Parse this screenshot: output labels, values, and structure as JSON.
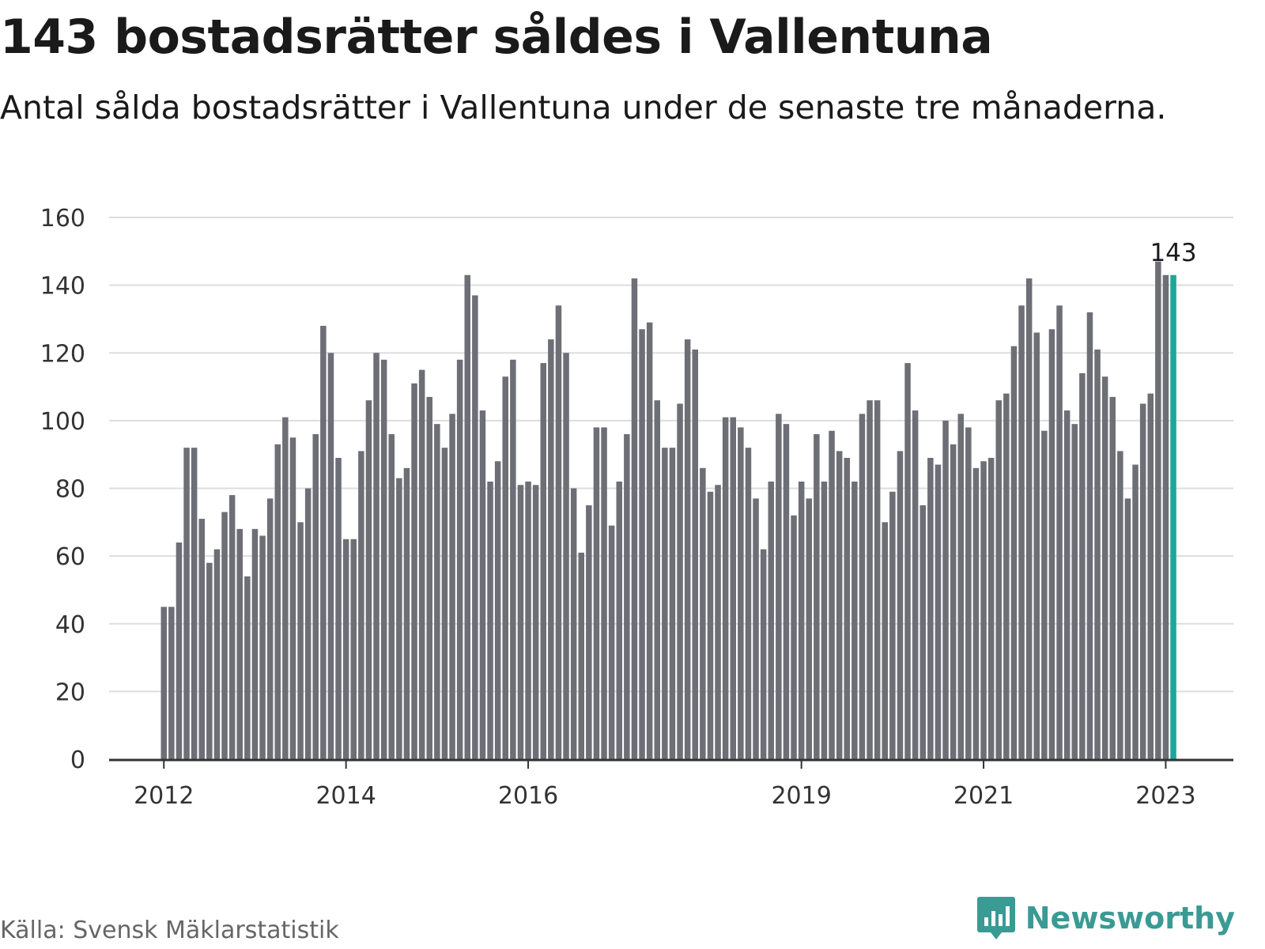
{
  "title": "143 bostadsrätter såldes i Vallentuna",
  "subtitle": "Antal sålda bostadsrätter i Vallentuna under de senaste tre månaderna.",
  "source": "Källa: Svensk Mäklarstatistik",
  "brand": "Newsworthy",
  "colors": {
    "bar": "#6e6e76",
    "highlight": "#1aa89a",
    "grid": "#dddddd",
    "axis": "#333333",
    "brand": "#3a9a94"
  },
  "chart_data": {
    "type": "bar",
    "title": "143 bostadsrätter såldes i Vallentuna",
    "subtitle": "Antal sålda bostadsrätter i Vallentuna under de senaste tre månaderna.",
    "ylim": [
      0,
      160
    ],
    "yticks": [
      0,
      20,
      40,
      60,
      80,
      100,
      120,
      140,
      160
    ],
    "xtick_labels": [
      "2012",
      "2014",
      "2016",
      "2019",
      "2021",
      "2023"
    ],
    "xtick_bar_index": [
      0,
      24,
      48,
      84,
      108,
      132
    ],
    "grid": true,
    "values": [
      45,
      45,
      64,
      92,
      92,
      71,
      58,
      62,
      73,
      78,
      68,
      54,
      68,
      66,
      77,
      93,
      101,
      95,
      70,
      80,
      96,
      128,
      120,
      89,
      65,
      65,
      91,
      106,
      120,
      118,
      96,
      83,
      86,
      111,
      115,
      107,
      99,
      92,
      102,
      118,
      143,
      137,
      103,
      82,
      88,
      113,
      118,
      81,
      82,
      81,
      117,
      124,
      134,
      120,
      80,
      61,
      75,
      98,
      98,
      69,
      82,
      96,
      142,
      127,
      129,
      106,
      92,
      92,
      105,
      124,
      121,
      86,
      79,
      81,
      101,
      101,
      98,
      92,
      77,
      62,
      82,
      102,
      99,
      72,
      82,
      77,
      96,
      82,
      97,
      91,
      89,
      82,
      102,
      106,
      106,
      70,
      79,
      91,
      117,
      103,
      75,
      89,
      87,
      100,
      93,
      102,
      98,
      86,
      88,
      89,
      106,
      108,
      122,
      134,
      142,
      126,
      97,
      127,
      134,
      103,
      99,
      114,
      132,
      121,
      113,
      107,
      91,
      77,
      87,
      105,
      108,
      147,
      143,
      143
    ],
    "highlight_index": 133,
    "annotation": {
      "bar_index": 133,
      "text": "143"
    }
  }
}
